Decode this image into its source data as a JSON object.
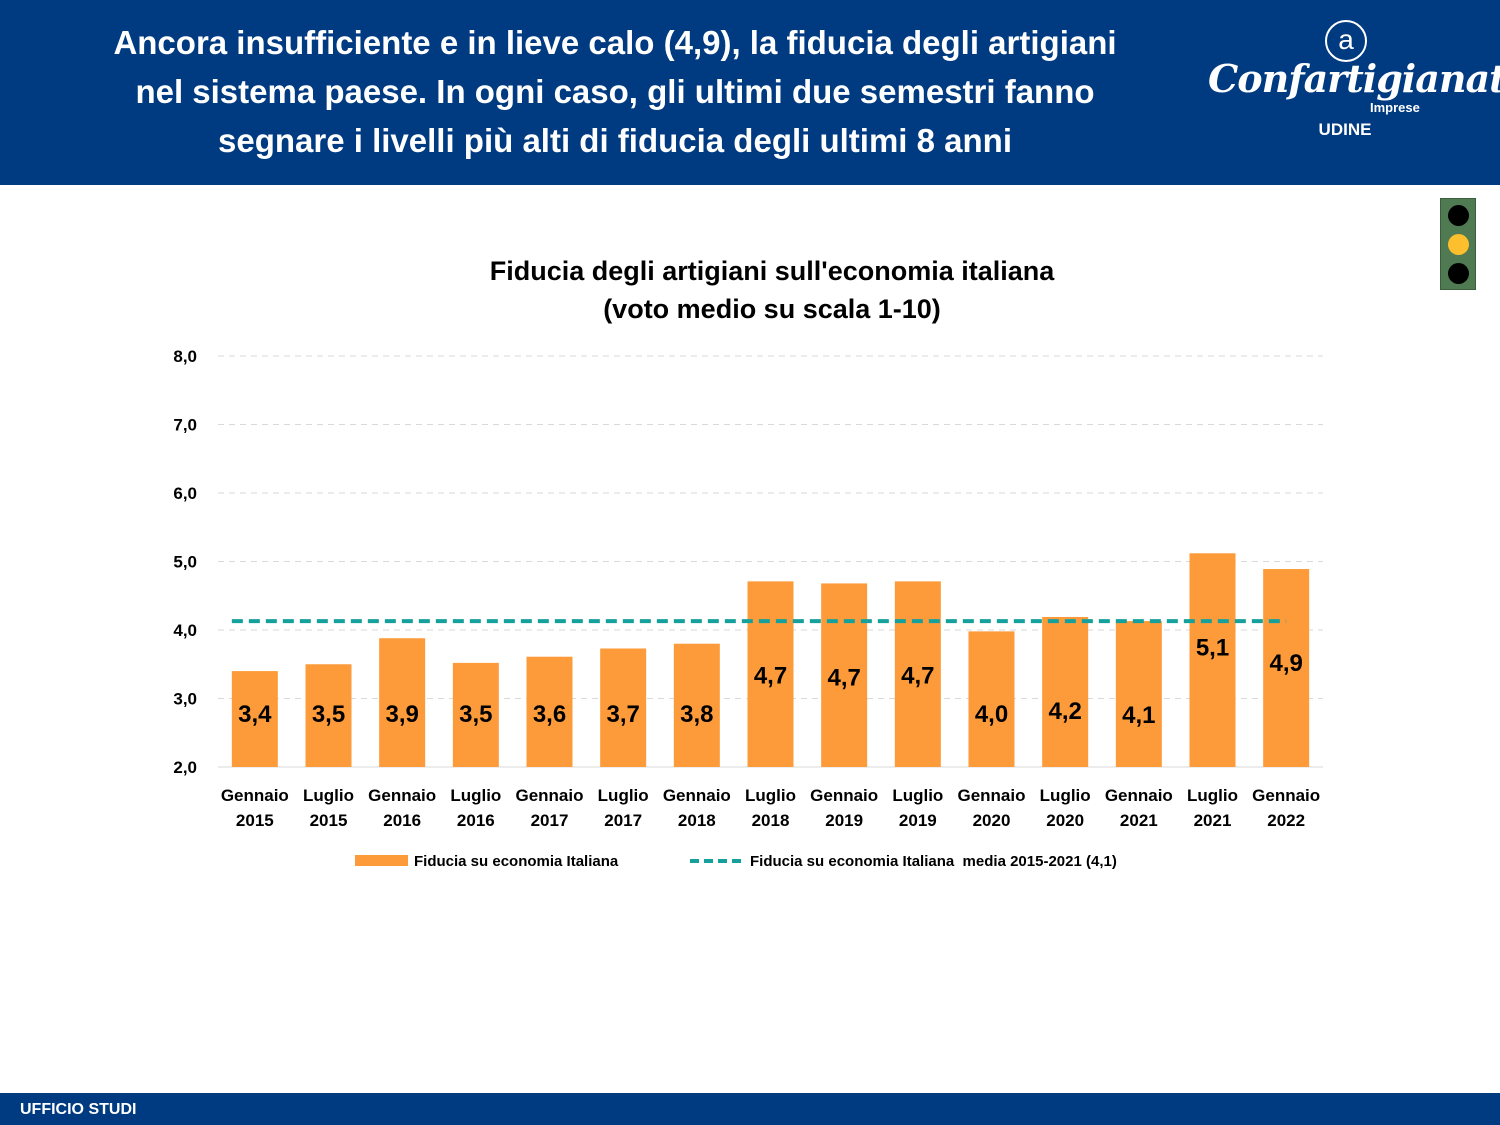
{
  "header": {
    "headline": "Ancora insufficiente e in lieve calo (4,9), la fiducia degli artigiani\nnel sistema paese. In ogni caso, gli ultimi due semestri fanno\nsegnare i livelli più alti di fiducia degli ultimi 8 anni",
    "logo_name": "Confartigianato",
    "logo_sub": "Imprese",
    "logo_city": "UDINE",
    "logo_mark": "a"
  },
  "traffic_light": {
    "active": "yellow",
    "colors": [
      "#000000",
      "#fdbf2d",
      "#000000"
    ]
  },
  "footer": {
    "label": "UFFICIO STUDI"
  },
  "colors": {
    "brand": "#003a80",
    "bar": "#fd9b3a",
    "average_line": "#16a09c",
    "grid": "#d9d9d9"
  },
  "chart_data": {
    "type": "bar",
    "title": "Fiducia degli artigiani sull'economia italiana\n(voto medio su scala 1-10)",
    "xlabel": "",
    "ylabel": "",
    "ylim": [
      2,
      8
    ],
    "yticks": [
      2,
      3,
      4,
      5,
      6,
      7,
      8
    ],
    "ytick_labels": [
      "2,0",
      "3,0",
      "4,0",
      "5,0",
      "6,0",
      "7,0",
      "8,0"
    ],
    "grid": true,
    "legend_position": "bottom",
    "categories": [
      [
        "Gennaio",
        "2015"
      ],
      [
        "Luglio",
        "2015"
      ],
      [
        "Gennaio",
        "2016"
      ],
      [
        "Luglio",
        "2016"
      ],
      [
        "Gennaio",
        "2017"
      ],
      [
        "Luglio",
        "2017"
      ],
      [
        "Gennaio",
        "2018"
      ],
      [
        "Luglio",
        "2018"
      ],
      [
        "Gennaio",
        "2019"
      ],
      [
        "Luglio",
        "2019"
      ],
      [
        "Gennaio",
        "2020"
      ],
      [
        "Luglio",
        "2020"
      ],
      [
        "Gennaio",
        "2021"
      ],
      [
        "Luglio",
        "2021"
      ],
      [
        "Gennaio",
        "2022"
      ]
    ],
    "series": [
      {
        "name": "Fiducia su economia Italiana",
        "type": "bar",
        "values": [
          3.4,
          3.5,
          3.88,
          3.52,
          3.61,
          3.73,
          3.8,
          4.71,
          4.68,
          4.71,
          3.98,
          4.19,
          4.13,
          5.12,
          4.89
        ],
        "labels": [
          "3,4",
          "3,5",
          "3,9",
          "3,5",
          "3,6",
          "3,7",
          "3,8",
          "4,7",
          "4,7",
          "4,7",
          "4,0",
          "4,2",
          "4,1",
          "5,1",
          "4,9"
        ]
      },
      {
        "name": "Fiducia su economia Italiana  media 2015-2021 (4,1)",
        "type": "line",
        "style": "dashed",
        "value": 4.13
      }
    ]
  }
}
